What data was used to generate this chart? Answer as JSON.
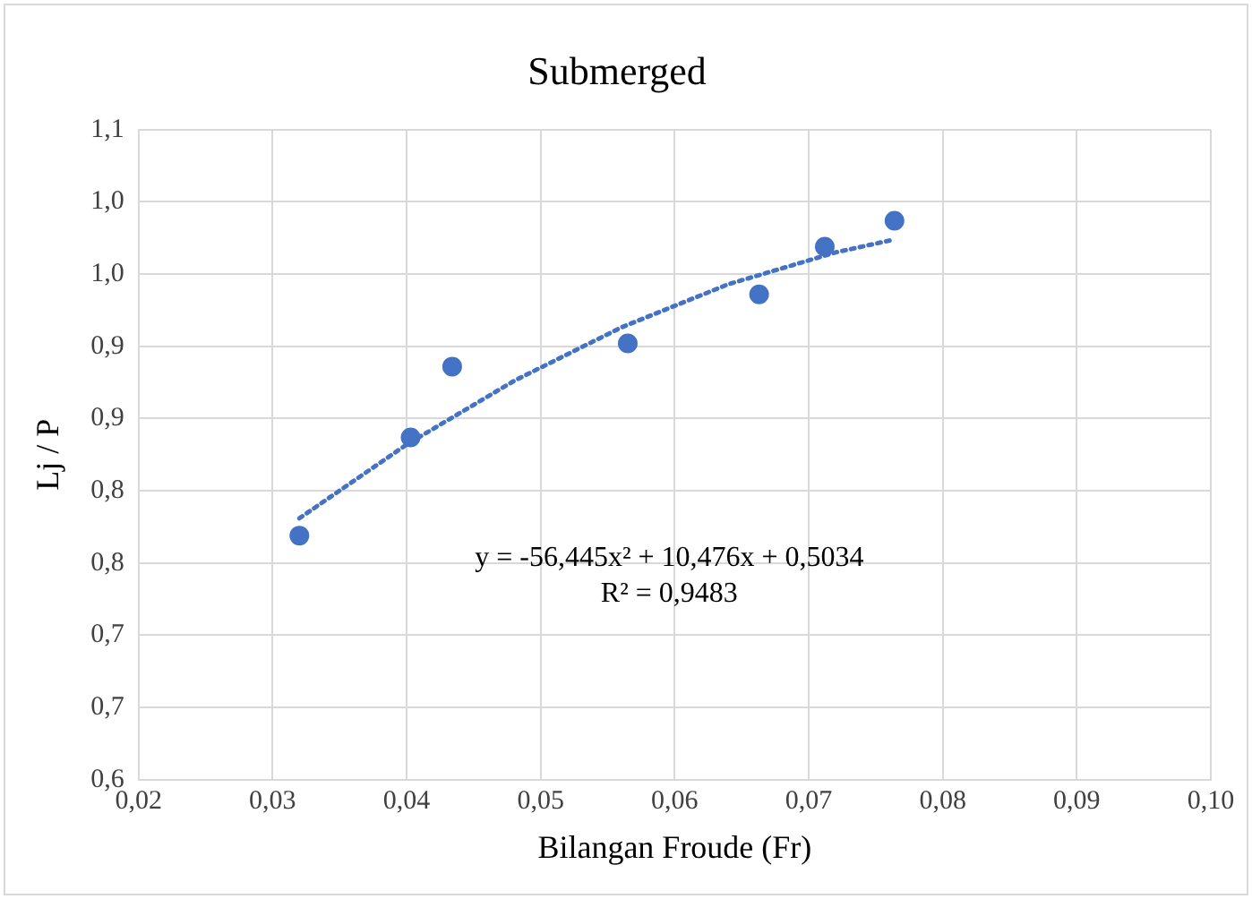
{
  "chart_data": {
    "type": "scatter",
    "title": "Submerged",
    "xlabel": "Bilangan Froude (Fr)",
    "ylabel": "Lj / P",
    "x": [
      0.032,
      0.0403,
      0.0434,
      0.0565,
      0.0663,
      0.0712,
      0.0764
    ],
    "series": [
      {
        "color": "#4472c4",
        "marker": "circle",
        "values": [
          0.769,
          0.837,
          0.886,
          0.902,
          0.936,
          0.969,
          0.987
        ]
      },
      {
        "type": "line",
        "color": "#4472c4",
        "marker": "none",
        "line_style": "dotted",
        "x": [
          0.032,
          0.04,
          0.048,
          0.056,
          0.064,
          0.072,
          0.0764
        ],
        "values": [
          0.781,
          0.832,
          0.876,
          0.913,
          0.943,
          0.965,
          0.974
        ]
      }
    ],
    "xlim": [
      0.02,
      0.1
    ],
    "xticks": [
      {
        "value": 0.02,
        "label": "0,02"
      },
      {
        "value": 0.03,
        "label": "0,03"
      },
      {
        "value": 0.04,
        "label": "0,04"
      },
      {
        "value": 0.05,
        "label": "0,05"
      },
      {
        "value": 0.06,
        "label": "0,06"
      },
      {
        "value": 0.07,
        "label": "0,07"
      },
      {
        "value": 0.08,
        "label": "0,08"
      },
      {
        "value": 0.09,
        "label": "0,09"
      },
      {
        "value": 0.1,
        "label": "0,10"
      }
    ],
    "ylim": [
      0.6,
      1.05
    ],
    "yticks": [
      {
        "value": 0.6,
        "label": "0,6"
      },
      {
        "value": 0.65,
        "label": "0,7"
      },
      {
        "value": 0.7,
        "label": "0,7"
      },
      {
        "value": 0.75,
        "label": "0,8"
      },
      {
        "value": 0.8,
        "label": "0,8"
      },
      {
        "value": 0.85,
        "label": "0,9"
      },
      {
        "value": 0.9,
        "label": "0,9"
      },
      {
        "value": 0.95,
        "label": "1,0"
      },
      {
        "value": 1.0,
        "label": "1,0"
      },
      {
        "value": 1.05,
        "label": "1,1"
      }
    ],
    "grid": true,
    "legend": false,
    "annotations": [
      "y = -56,445x² + 10,476x + 0,5034",
      "R² = 0,9483"
    ]
  }
}
